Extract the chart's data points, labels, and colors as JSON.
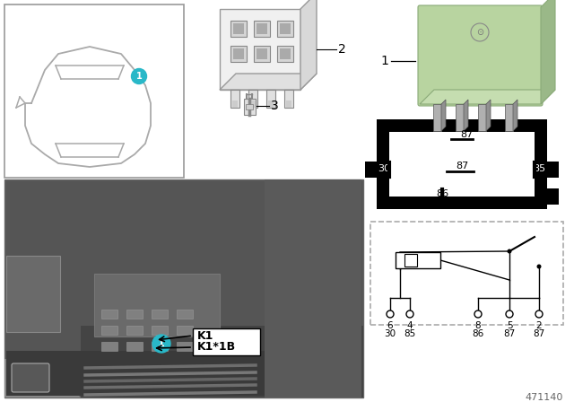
{
  "bg_color": "#ffffff",
  "teal": "#29b8c8",
  "part_number": "471140",
  "relay_green": "#b8d4a0",
  "pin_labels_row1": [
    "6",
    "4",
    "",
    "8",
    "5",
    "2"
  ],
  "pin_labels_row2": [
    "30",
    "85",
    "",
    "86",
    "87",
    "87"
  ]
}
